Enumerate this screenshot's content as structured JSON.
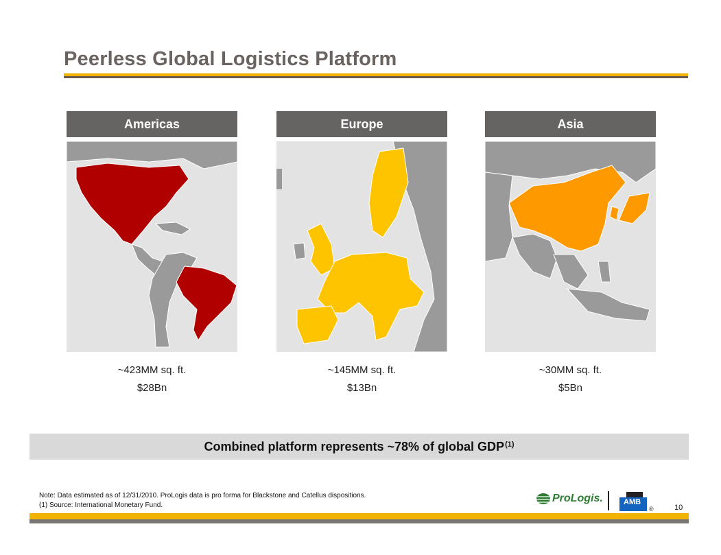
{
  "slide": {
    "title": "Peerless Global Logistics Platform",
    "page_number": "10"
  },
  "regions": [
    {
      "name": "Americas",
      "area": "~423MM sq. ft.",
      "value": "$28Bn",
      "highlight_color": "#b00000"
    },
    {
      "name": "Europe",
      "area": "~145MM sq. ft.",
      "value": "$13Bn",
      "highlight_color": "#ffc400"
    },
    {
      "name": "Asia",
      "area": "~30MM sq. ft.",
      "value": "$5Bn",
      "highlight_color": "#ff9900"
    }
  ],
  "gdp_callout": {
    "text": "Combined platform represents ~78% of global GDP",
    "footnote_ref": "(1)"
  },
  "notes": {
    "line1": "Note: Data estimated as of 12/31/2010.  ProLogis data is pro forma for Blackstone and Catellus dispositions.",
    "line2": "(1)  Source: International Monetary Fund."
  },
  "logos": {
    "prologis": "ProLogis.",
    "amb": "AMB",
    "registered": "®"
  },
  "colors": {
    "title": "#6b6360",
    "header_bg": "#666363",
    "accent_gold": "#f0b400",
    "land": "#9a9a9a",
    "water": "#e3e3e3"
  }
}
